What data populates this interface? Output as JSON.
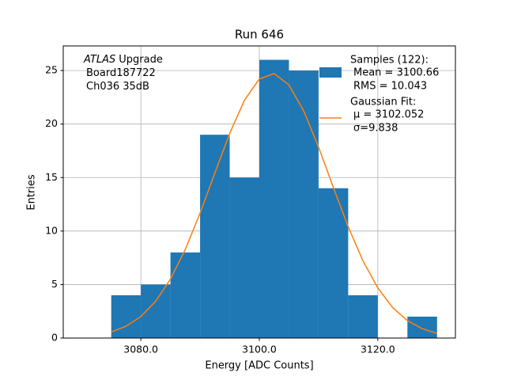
{
  "chart_data": {
    "type": "histogram",
    "title": "Run 646",
    "x_label": "Energy [ADC Counts]",
    "y_label": "Entries",
    "bins": [
      3075,
      3080,
      3085,
      3090,
      3095,
      3100,
      3105,
      3110,
      3115,
      3120,
      3125,
      3130
    ],
    "xlim": [
      3066.9,
      3133.1
    ],
    "ylim": [
      0,
      27.3
    ],
    "xticks": [
      {
        "value": 3080,
        "label": "3080.0"
      },
      {
        "value": 3100,
        "label": "3100.0"
      },
      {
        "value": 3120,
        "label": "3120.0"
      }
    ],
    "yticks": [
      0,
      5,
      10,
      15,
      20,
      25
    ],
    "grid": true,
    "annotation": [
      {
        "italic": "ATLAS",
        "text": "Upgrade"
      },
      {
        "text": "Board187722"
      },
      {
        "text": "Ch036 35dB"
      }
    ],
    "series": [
      {
        "name": "Samples (122):",
        "lines": [
          "Mean = 3100.66",
          "RMS = 10.043"
        ],
        "color": "#1f77b4",
        "values": [
          4,
          5,
          8,
          19,
          15,
          26,
          25,
          14,
          4,
          0,
          2
        ]
      },
      {
        "name": "Gaussian Fit:",
        "lines": [
          "μ = 3102.052",
          "σ=9.838"
        ],
        "color": "#ff7f0e",
        "x": [
          3075,
          3077.5,
          3080,
          3082.5,
          3085,
          3087.5,
          3090,
          3092.5,
          3095,
          3097.5,
          3100,
          3102.5,
          3105,
          3107.5,
          3110,
          3112.5,
          3115,
          3117.5,
          3120,
          3122.5,
          3125,
          3127.5,
          3130
        ],
        "values": [
          0.56,
          1.1,
          2.01,
          3.43,
          5.51,
          8.28,
          11.68,
          15.44,
          19.13,
          22.23,
          24.21,
          24.72,
          23.65,
          21.22,
          17.85,
          14.07,
          10.41,
          7.21,
          4.69,
          2.85,
          1.63,
          0.87,
          0.44
        ]
      }
    ]
  }
}
